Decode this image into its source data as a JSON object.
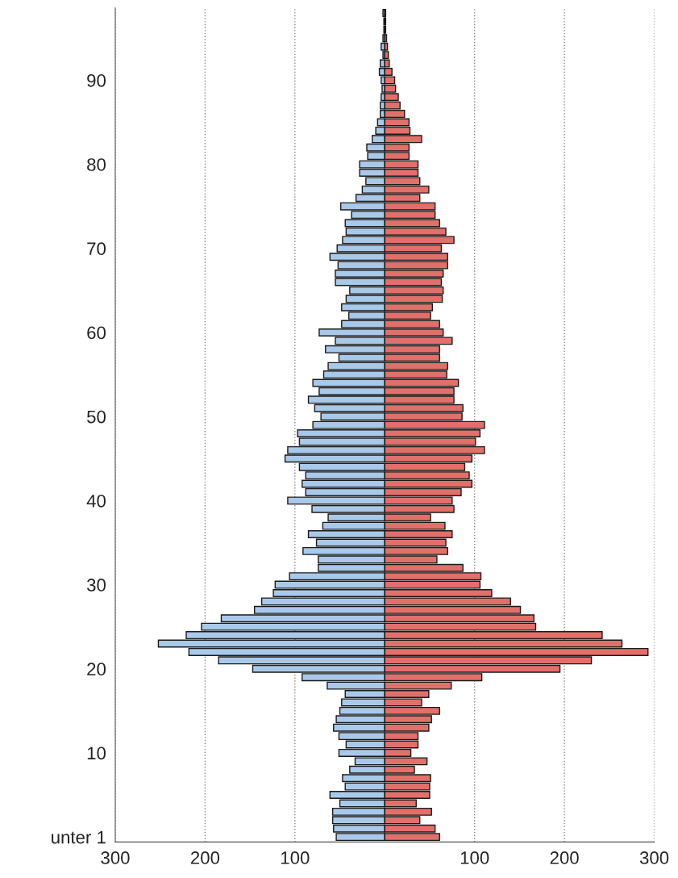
{
  "chart_data": {
    "type": "bar",
    "orientation": "horizontal",
    "stacked": true,
    "categories": [
      null,
      null,
      null,
      null,
      null,
      null,
      null,
      null,
      "90",
      null,
      null,
      null,
      null,
      null,
      null,
      null,
      null,
      null,
      "80",
      null,
      null,
      null,
      null,
      null,
      null,
      null,
      null,
      null,
      "70",
      null,
      null,
      null,
      null,
      null,
      null,
      null,
      null,
      null,
      "60",
      null,
      null,
      null,
      null,
      null,
      null,
      null,
      null,
      null,
      "50",
      null,
      null,
      null,
      null,
      null,
      null,
      null,
      null,
      null,
      "40",
      null,
      null,
      null,
      null,
      null,
      null,
      null,
      null,
      null,
      "30",
      null,
      null,
      null,
      null,
      null,
      null,
      null,
      null,
      null,
      "20",
      null,
      null,
      null,
      null,
      null,
      null,
      null,
      null,
      null,
      "10",
      null,
      null,
      null,
      null,
      null,
      null,
      null,
      null,
      null,
      "unter 1"
    ],
    "series": [
      {
        "color": "#a9c9ea",
        "values": [
          -2,
          -1,
          -1,
          -2,
          -4,
          -2,
          -5,
          -6,
          -4,
          -3,
          -4,
          -5,
          -5,
          -8,
          -10,
          -14,
          -20,
          -19,
          -28,
          -28,
          -21,
          -25,
          -32,
          -49,
          -37,
          -44,
          -43,
          -47,
          -53,
          -61,
          -52,
          -55,
          -55,
          -39,
          -43,
          -48,
          -40,
          -48,
          -73,
          -55,
          -66,
          -51,
          -63,
          -68,
          -80,
          -73,
          -85,
          -78,
          -71,
          -80,
          -97,
          -95,
          -108,
          -111,
          -95,
          -88,
          -92,
          -88,
          -108,
          -81,
          -63,
          -69,
          -85,
          -76,
          -91,
          -74,
          -74,
          -106,
          -122,
          -124,
          -137,
          -145,
          -182,
          -204,
          -221,
          -252,
          -218,
          -185,
          -147,
          -92,
          -64,
          -44,
          -48,
          -50,
          -54,
          -57,
          -51,
          -43,
          -51,
          -33,
          -39,
          -47,
          -44,
          -61,
          -50,
          -58,
          -58,
          -57,
          -54
        ]
      },
      {
        "color": "#e2706a",
        "values": [
          1,
          1,
          1,
          2,
          3,
          4,
          5,
          8,
          11,
          12,
          15,
          17,
          22,
          27,
          28,
          41,
          27,
          27,
          37,
          37,
          39,
          49,
          39,
          56,
          56,
          61,
          68,
          77,
          63,
          70,
          70,
          65,
          63,
          65,
          64,
          53,
          51,
          61,
          65,
          75,
          61,
          61,
          70,
          69,
          82,
          77,
          77,
          87,
          86,
          111,
          106,
          101,
          111,
          97,
          89,
          94,
          97,
          85,
          75,
          77,
          51,
          67,
          75,
          68,
          70,
          58,
          87,
          107,
          106,
          119,
          140,
          151,
          166,
          168,
          242,
          264,
          293,
          230,
          195,
          108,
          74,
          49,
          41,
          61,
          52,
          49,
          37,
          37,
          29,
          47,
          33,
          51,
          50,
          50,
          35,
          52,
          39,
          56,
          61
        ]
      }
    ],
    "xlim": [
      -300,
      300
    ],
    "xticks": [
      {
        "value": -300,
        "label": "300"
      },
      {
        "value": -200,
        "label": "200"
      },
      {
        "value": -100,
        "label": "100"
      },
      {
        "value": 100,
        "label": "100"
      },
      {
        "value": 200,
        "label": "200"
      },
      {
        "value": 300,
        "label": "300"
      }
    ],
    "grid": "x"
  }
}
